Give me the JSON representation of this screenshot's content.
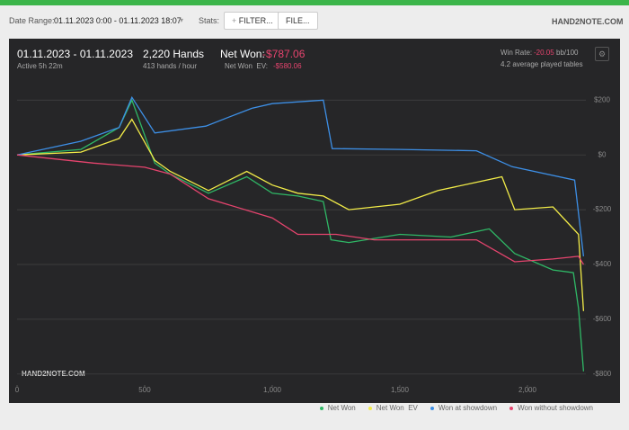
{
  "toolbar": {
    "date_label": "Date Range:",
    "date_value": "01.11.2023 0:00 - 01.11.2023 18:07",
    "stats_label": "Stats:",
    "filter_button": "FILTER...",
    "file_button": "FILE...",
    "logo": "HAND2NOTE.COM"
  },
  "summary": {
    "date_span": "01.11.2023 - 01.11.2023",
    "active": "Active 5h 22m",
    "hands": "2,220 Hands",
    "rate": "413 hands / hour",
    "net_won_label": "Net Won:",
    "net_won_value": "-$787.06",
    "ev_label": "Net Won  EV:",
    "ev_value": "-$580.06",
    "win_rate_label": "Win Rate:",
    "win_rate_value": "-20.05",
    "win_rate_unit": "bb/100",
    "tables": "4.2 average played tables",
    "watermark": "HAND2NOTE.COM"
  },
  "chart_data": {
    "type": "line",
    "xlim": [
      0,
      2222
    ],
    "ylim": [
      -840,
      260
    ],
    "xticks": [
      0,
      500,
      {
        "value": 1000,
        "label": "1,000"
      },
      {
        "value": 1500,
        "label": "1,500"
      },
      {
        "value": 2000,
        "label": "2,000"
      }
    ],
    "yticks": [
      {
        "value": 200,
        "label": "$200"
      },
      {
        "value": 0,
        "label": "$0"
      },
      {
        "value": -200,
        "label": "-$200"
      },
      {
        "value": -400,
        "label": "-$400"
      },
      {
        "value": -600,
        "label": "-$600"
      },
      {
        "value": -800,
        "label": "-$800"
      }
    ],
    "grid": true,
    "series": [
      {
        "name": "Net Won",
        "color": "#2fb866",
        "x": [
          0,
          250,
          400,
          450,
          540,
          600,
          750,
          900,
          1000,
          1100,
          1200,
          1230,
          1300,
          1500,
          1700,
          1850,
          1950,
          2100,
          2180,
          2200,
          2220
        ],
        "values": [
          0,
          20,
          100,
          200,
          -30,
          -70,
          -140,
          -80,
          -140,
          -150,
          -170,
          -310,
          -320,
          -290,
          -300,
          -270,
          -360,
          -420,
          -430,
          -560,
          -790
        ]
      },
      {
        "name": "Net Won  EV",
        "color": "#f2ec48",
        "x": [
          0,
          250,
          400,
          450,
          540,
          600,
          750,
          900,
          1000,
          1100,
          1200,
          1300,
          1500,
          1650,
          1800,
          1900,
          1950,
          2100,
          2200,
          2220
        ],
        "values": [
          0,
          10,
          60,
          130,
          -20,
          -60,
          -130,
          -60,
          -110,
          -140,
          -150,
          -200,
          -180,
          -130,
          -100,
          -80,
          -200,
          -190,
          -290,
          -570
        ]
      },
      {
        "name": "Won at showdown",
        "color": "#3d8fe6",
        "x": [
          0,
          250,
          400,
          450,
          540,
          740,
          830,
          920,
          1000,
          1200,
          1235,
          1500,
          1800,
          1940,
          2185,
          2220
        ],
        "values": [
          0,
          50,
          100,
          210,
          80,
          105,
          138,
          170,
          187,
          200,
          23,
          20,
          15,
          -43,
          -92,
          -370
        ]
      },
      {
        "name": "Won without showdown",
        "color": "#e6446e",
        "x": [
          0,
          300,
          500,
          600,
          750,
          1000,
          1100,
          1250,
          1400,
          1800,
          1950,
          2100,
          2200,
          2220
        ],
        "values": [
          0,
          -30,
          -45,
          -70,
          -160,
          -230,
          -290,
          -290,
          -310,
          -310,
          -390,
          -380,
          -370,
          -400
        ]
      }
    ]
  }
}
